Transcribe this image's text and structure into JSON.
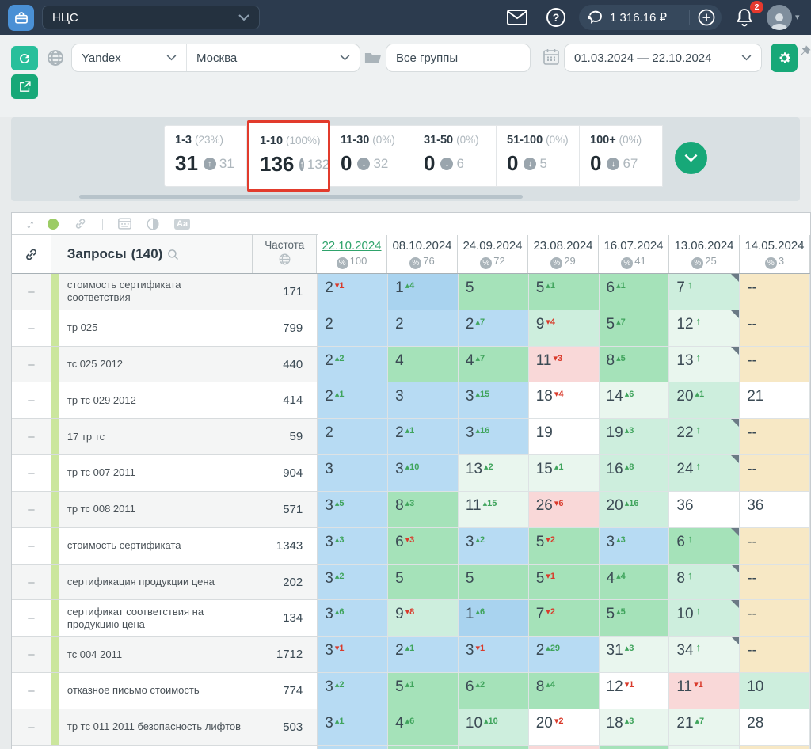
{
  "colors": {
    "topbar_bg": "#2c3b4e",
    "accent_green": "#17a878",
    "teal": "#28bf9b",
    "highlight_red": "#e23b2c",
    "current_date_green": "#2fa36b",
    "delta_up": "#3fa45c",
    "delta_down": "#d93a2b",
    "cell_bg": {
      "B": "#b7dbf3",
      "B2": "#a9d3ef",
      "G": "#a5e2b9",
      "LG": "#cdeedd",
      "XG": "#e9f6ee",
      "P": "#f9d8d8",
      "W": "#ffffff",
      "Y": "#f7e8c5"
    }
  },
  "topbar": {
    "project": "НЦС",
    "balance": "1 316.16 ₽",
    "notifications": "2"
  },
  "filters": {
    "engine": "Yandex",
    "region": "Москва",
    "groups": "Все группы",
    "date_range": "01.03.2024 — 22.10.2024"
  },
  "summary": {
    "cards": [
      {
        "range": "1-3",
        "percent": "(23%)",
        "value": "31",
        "delta": "31",
        "dir": "up",
        "highlight": false
      },
      {
        "range": "1-10",
        "percent": "(100%)",
        "value": "136",
        "delta": "132",
        "dir": "up",
        "highlight": true
      },
      {
        "range": "11-30",
        "percent": "(0%)",
        "value": "0",
        "delta": "32",
        "dir": "down",
        "highlight": false
      },
      {
        "range": "31-50",
        "percent": "(0%)",
        "value": "0",
        "delta": "6",
        "dir": "down",
        "highlight": false
      },
      {
        "range": "51-100",
        "percent": "(0%)",
        "value": "0",
        "delta": "5",
        "dir": "down",
        "highlight": false
      },
      {
        "range": "100+",
        "percent": "(0%)",
        "value": "0",
        "delta": "67",
        "dir": "down",
        "highlight": false
      }
    ]
  },
  "table": {
    "toolbar": {
      "sort_glyph": "↓↑",
      "aa_glyph": "Aa"
    },
    "queries_label": "Запросы",
    "queries_count": "(140)",
    "frequency_label": "Частота",
    "row_handle": "–",
    "empty_value": "--",
    "percent_symbol": "%",
    "up_arrow": "▴",
    "down_arrow": "▾",
    "plain_arrow": "↑",
    "columns": [
      {
        "date": "22.10.2024",
        "visibility": "100",
        "current": true
      },
      {
        "date": "08.10.2024",
        "visibility": "76",
        "current": false
      },
      {
        "date": "24.09.2024",
        "visibility": "72",
        "current": false
      },
      {
        "date": "23.08.2024",
        "visibility": "29",
        "current": false
      },
      {
        "date": "16.07.2024",
        "visibility": "41",
        "current": false
      },
      {
        "date": "13.06.2024",
        "visibility": "25",
        "current": false
      },
      {
        "date": "14.05.2024",
        "visibility": "3",
        "current": false
      }
    ],
    "rows": [
      {
        "query": "стоимость сертификата соответствия",
        "frequency": "171",
        "cells": [
          {
            "v": "2",
            "d": "1",
            "dir": "down",
            "bg": "B"
          },
          {
            "v": "1",
            "d": "4",
            "dir": "up",
            "bg": "B2"
          },
          {
            "v": "5",
            "bg": "G"
          },
          {
            "v": "5",
            "d": "1",
            "dir": "up",
            "bg": "G"
          },
          {
            "v": "6",
            "d": "1",
            "dir": "up",
            "bg": "G"
          },
          {
            "v": "7",
            "dir": "arrow",
            "bg": "LG",
            "note": true
          },
          {
            "v": "--",
            "bg": "Y"
          }
        ]
      },
      {
        "query": "тр 025",
        "frequency": "799",
        "cells": [
          {
            "v": "2",
            "bg": "B"
          },
          {
            "v": "2",
            "bg": "B"
          },
          {
            "v": "2",
            "d": "7",
            "dir": "up",
            "bg": "B"
          },
          {
            "v": "9",
            "d": "4",
            "dir": "down",
            "bg": "LG"
          },
          {
            "v": "5",
            "d": "7",
            "dir": "up",
            "bg": "G"
          },
          {
            "v": "12",
            "dir": "arrow",
            "bg": "XG",
            "note": true
          },
          {
            "v": "--",
            "bg": "Y"
          }
        ]
      },
      {
        "query": "тс 025 2012",
        "frequency": "440",
        "cells": [
          {
            "v": "2",
            "d": "2",
            "dir": "up",
            "bg": "B"
          },
          {
            "v": "4",
            "bg": "G"
          },
          {
            "v": "4",
            "d": "7",
            "dir": "up",
            "bg": "G"
          },
          {
            "v": "11",
            "d": "3",
            "dir": "down",
            "bg": "P"
          },
          {
            "v": "8",
            "d": "5",
            "dir": "up",
            "bg": "G"
          },
          {
            "v": "13",
            "dir": "arrow",
            "bg": "XG",
            "note": true
          },
          {
            "v": "--",
            "bg": "Y"
          }
        ]
      },
      {
        "query": "тр тс 029 2012",
        "frequency": "414",
        "cells": [
          {
            "v": "2",
            "d": "1",
            "dir": "up",
            "bg": "B"
          },
          {
            "v": "3",
            "bg": "B"
          },
          {
            "v": "3",
            "d": "15",
            "dir": "up",
            "bg": "B"
          },
          {
            "v": "18",
            "d": "4",
            "dir": "down",
            "bg": "W"
          },
          {
            "v": "14",
            "d": "6",
            "dir": "up",
            "bg": "XG"
          },
          {
            "v": "20",
            "d": "1",
            "dir": "up",
            "bg": "LG"
          },
          {
            "v": "21",
            "bg": "W"
          }
        ]
      },
      {
        "query": "17 тр тс",
        "frequency": "59",
        "cells": [
          {
            "v": "2",
            "bg": "B"
          },
          {
            "v": "2",
            "d": "1",
            "dir": "up",
            "bg": "B"
          },
          {
            "v": "3",
            "d": "16",
            "dir": "up",
            "bg": "B"
          },
          {
            "v": "19",
            "bg": "W"
          },
          {
            "v": "19",
            "d": "3",
            "dir": "up",
            "bg": "LG"
          },
          {
            "v": "22",
            "dir": "arrow",
            "bg": "LG",
            "note": true
          },
          {
            "v": "--",
            "bg": "Y"
          }
        ]
      },
      {
        "query": "тр тс 007 2011",
        "frequency": "904",
        "cells": [
          {
            "v": "3",
            "bg": "B"
          },
          {
            "v": "3",
            "d": "10",
            "dir": "up",
            "bg": "B"
          },
          {
            "v": "13",
            "d": "2",
            "dir": "up",
            "bg": "XG"
          },
          {
            "v": "15",
            "d": "1",
            "dir": "up",
            "bg": "XG"
          },
          {
            "v": "16",
            "d": "8",
            "dir": "up",
            "bg": "LG"
          },
          {
            "v": "24",
            "dir": "arrow",
            "bg": "LG",
            "note": true
          },
          {
            "v": "--",
            "bg": "Y"
          }
        ]
      },
      {
        "query": "тр тс 008 2011",
        "frequency": "571",
        "cells": [
          {
            "v": "3",
            "d": "5",
            "dir": "up",
            "bg": "B"
          },
          {
            "v": "8",
            "d": "3",
            "dir": "up",
            "bg": "G"
          },
          {
            "v": "11",
            "d": "15",
            "dir": "up",
            "bg": "XG"
          },
          {
            "v": "26",
            "d": "6",
            "dir": "down",
            "bg": "P"
          },
          {
            "v": "20",
            "d": "16",
            "dir": "up",
            "bg": "LG"
          },
          {
            "v": "36",
            "bg": "W"
          },
          {
            "v": "36",
            "bg": "W"
          }
        ]
      },
      {
        "query": "стоимость сертификата",
        "frequency": "1343",
        "cells": [
          {
            "v": "3",
            "d": "3",
            "dir": "up",
            "bg": "B"
          },
          {
            "v": "6",
            "d": "3",
            "dir": "down",
            "bg": "G"
          },
          {
            "v": "3",
            "d": "2",
            "dir": "up",
            "bg": "B"
          },
          {
            "v": "5",
            "d": "2",
            "dir": "down",
            "bg": "G"
          },
          {
            "v": "3",
            "d": "3",
            "dir": "up",
            "bg": "B"
          },
          {
            "v": "6",
            "dir": "arrow",
            "bg": "G",
            "note": true
          },
          {
            "v": "--",
            "bg": "Y"
          }
        ]
      },
      {
        "query": "сертификация продукции цена",
        "frequency": "202",
        "cells": [
          {
            "v": "3",
            "d": "2",
            "dir": "up",
            "bg": "B"
          },
          {
            "v": "5",
            "bg": "G"
          },
          {
            "v": "5",
            "bg": "G"
          },
          {
            "v": "5",
            "d": "1",
            "dir": "down",
            "bg": "G"
          },
          {
            "v": "4",
            "d": "4",
            "dir": "up",
            "bg": "G"
          },
          {
            "v": "8",
            "dir": "arrow",
            "bg": "LG",
            "note": true
          },
          {
            "v": "--",
            "bg": "Y"
          }
        ]
      },
      {
        "query": "сертификат соответствия на продукцию цена",
        "frequency": "134",
        "cells": [
          {
            "v": "3",
            "d": "6",
            "dir": "up",
            "bg": "B"
          },
          {
            "v": "9",
            "d": "8",
            "dir": "down",
            "bg": "LG"
          },
          {
            "v": "1",
            "d": "6",
            "dir": "up",
            "bg": "B2"
          },
          {
            "v": "7",
            "d": "2",
            "dir": "down",
            "bg": "G"
          },
          {
            "v": "5",
            "d": "5",
            "dir": "up",
            "bg": "G"
          },
          {
            "v": "10",
            "dir": "arrow",
            "bg": "LG",
            "note": true
          },
          {
            "v": "--",
            "bg": "Y"
          }
        ]
      },
      {
        "query": "тс 004 2011",
        "frequency": "1712",
        "cells": [
          {
            "v": "3",
            "d": "1",
            "dir": "down",
            "bg": "B"
          },
          {
            "v": "2",
            "d": "1",
            "dir": "up",
            "bg": "B"
          },
          {
            "v": "3",
            "d": "1",
            "dir": "down",
            "bg": "B"
          },
          {
            "v": "2",
            "d": "29",
            "dir": "up",
            "bg": "B"
          },
          {
            "v": "31",
            "d": "3",
            "dir": "up",
            "bg": "XG"
          },
          {
            "v": "34",
            "dir": "arrow",
            "bg": "XG",
            "note": true
          },
          {
            "v": "--",
            "bg": "Y"
          }
        ]
      },
      {
        "query": "отказное письмо стоимость",
        "frequency": "774",
        "cells": [
          {
            "v": "3",
            "d": "2",
            "dir": "up",
            "bg": "B"
          },
          {
            "v": "5",
            "d": "1",
            "dir": "up",
            "bg": "G"
          },
          {
            "v": "6",
            "d": "2",
            "dir": "up",
            "bg": "G"
          },
          {
            "v": "8",
            "d": "4",
            "dir": "up",
            "bg": "G"
          },
          {
            "v": "12",
            "d": "1",
            "dir": "down",
            "bg": "W"
          },
          {
            "v": "11",
            "d": "1",
            "dir": "down",
            "bg": "P"
          },
          {
            "v": "10",
            "bg": "LG"
          }
        ]
      },
      {
        "query": "тр тс 011 2011 безопасность лифтов",
        "frequency": "503",
        "cells": [
          {
            "v": "3",
            "d": "1",
            "dir": "up",
            "bg": "B"
          },
          {
            "v": "4",
            "d": "6",
            "dir": "up",
            "bg": "G"
          },
          {
            "v": "10",
            "d": "10",
            "dir": "up",
            "bg": "LG"
          },
          {
            "v": "20",
            "d": "2",
            "dir": "down",
            "bg": "W"
          },
          {
            "v": "18",
            "d": "3",
            "dir": "up",
            "bg": "XG"
          },
          {
            "v": "21",
            "d": "7",
            "dir": "up",
            "bg": "XG"
          },
          {
            "v": "28",
            "bg": "W"
          }
        ]
      }
    ],
    "partial_row": [
      "B",
      "G",
      "G",
      "P",
      "G",
      "XG",
      "Y"
    ]
  }
}
